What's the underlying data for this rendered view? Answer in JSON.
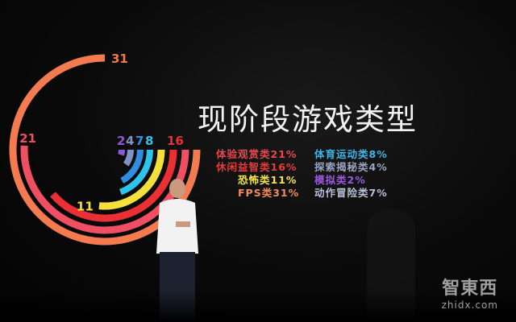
{
  "slide": {
    "title": "现阶段游戏类型",
    "legend_left": [
      {
        "text": "体验观赏类21%",
        "color": "#e8464e"
      },
      {
        "text": "休闲益智类16%",
        "color": "#e63a3a"
      },
      {
        "text": "恐怖类11%",
        "color": "#f3e44a"
      },
      {
        "text": "FPS类31%",
        "color": "#f28a5a"
      }
    ],
    "legend_right": [
      {
        "text": "体育运动类8%",
        "color": "#3ab7e8"
      },
      {
        "text": "探索揭秘类4%",
        "color": "#9aa4c0"
      },
      {
        "text": "模拟类2%",
        "color": "#9a5ae0"
      },
      {
        "text": "动作冒险类7%",
        "color": "#b8c0d8"
      }
    ]
  },
  "chart_data": {
    "type": "radial-bar",
    "series": [
      {
        "label": "31",
        "value": 31,
        "color": "#f47a50"
      },
      {
        "label": "21",
        "value": 21,
        "color": "#ee4f63"
      },
      {
        "label": "16",
        "value": 16,
        "color": "#ea2f35"
      },
      {
        "label": "11",
        "value": 11,
        "color": "#f4e03a"
      },
      {
        "label": "8",
        "value": 8,
        "color": "#2ec3ea"
      },
      {
        "label": "7",
        "value": 7,
        "color": "#2f8ee0"
      },
      {
        "label": "4",
        "value": 4,
        "color": "#7f92c8"
      },
      {
        "label": "2",
        "value": 2,
        "color": "#8a5ad8"
      }
    ]
  },
  "watermark": {
    "logo": "智東西",
    "url": "zhidx.com"
  }
}
